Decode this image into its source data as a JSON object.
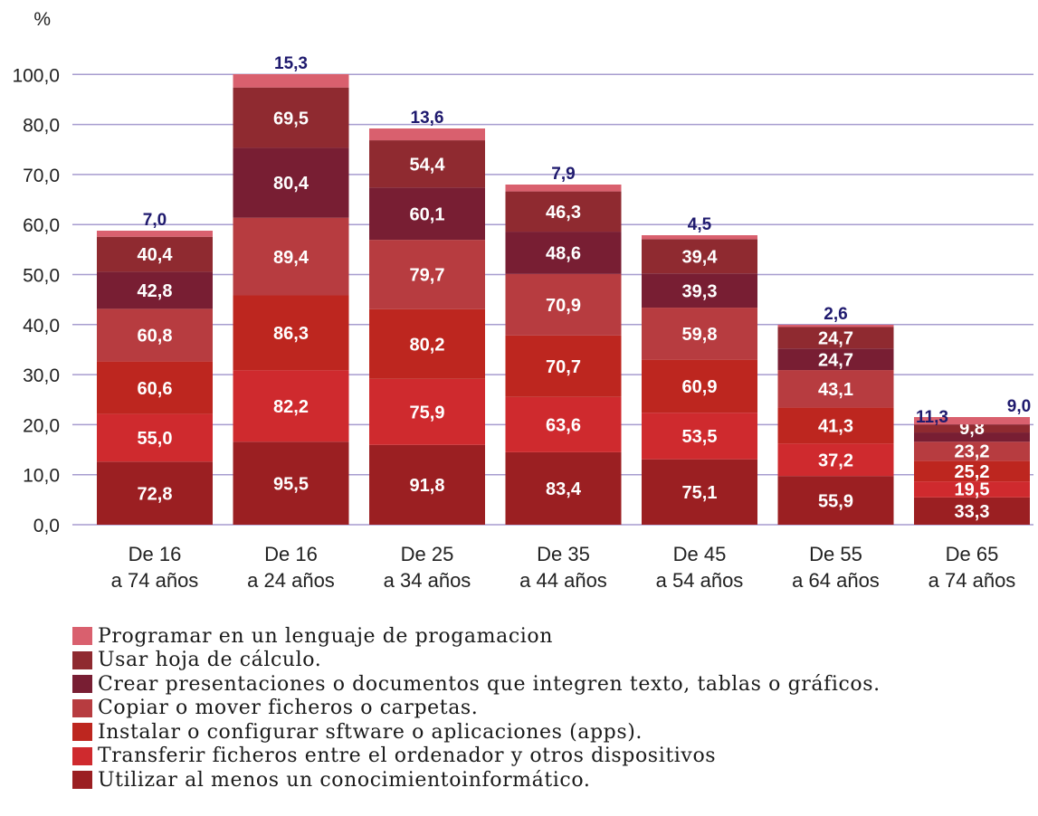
{
  "chart_data": {
    "type": "bar",
    "stacked": true,
    "title": "",
    "ylabel": "%",
    "xlabel": "",
    "yticks": [
      "0,0",
      "10,0",
      "20,0",
      "30,0",
      "40,0",
      "50,0",
      "60,0",
      "70,0",
      "80,0",
      "100,0"
    ],
    "grid": true,
    "legend_position": "bottom",
    "categories": [
      [
        "De 16",
        "a 74 años"
      ],
      [
        "De 16",
        "a 24 años"
      ],
      [
        "De 25",
        "a 34 años"
      ],
      [
        "De 35",
        "a 44 años"
      ],
      [
        "De 45",
        "a 54 años"
      ],
      [
        "De 55",
        "a 64 años"
      ],
      [
        "De 65",
        "a 74 años"
      ]
    ],
    "series": [
      {
        "name": "Utilizar al menos un conocimientoinformático.",
        "color": "#9b1f22",
        "values": [
          72.8,
          95.5,
          91.8,
          83.4,
          75.1,
          55.9,
          33.3
        ],
        "labels": [
          "72,8",
          "95,5",
          "91,8",
          "83,4",
          "75,1",
          "55,9",
          "33,3"
        ]
      },
      {
        "name": "Transferir ficheros entre el ordenador y otros dispositivos",
        "color": "#cf2a2e",
        "values": [
          55.0,
          82.2,
          75.9,
          63.6,
          53.5,
          37.2,
          19.5
        ],
        "labels": [
          "55,0",
          "82,2",
          "75,9",
          "63,6",
          "53,5",
          "37,2",
          "19,5"
        ]
      },
      {
        "name": "Instalar o configurar sftware o aplicaciones (apps).",
        "color": "#bd261f",
        "values": [
          60.6,
          86.3,
          80.2,
          70.7,
          60.9,
          41.3,
          25.2
        ],
        "labels": [
          "60,6",
          "86,3",
          "80,2",
          "70,7",
          "60,9",
          "41,3",
          "25,2"
        ]
      },
      {
        "name": "Copiar o mover ficheros o carpetas.",
        "color": "#b73c40",
        "values": [
          60.8,
          89.4,
          79.7,
          70.9,
          59.8,
          43.1,
          23.2
        ],
        "labels": [
          "60,8",
          "89,4",
          "79,7",
          "70,9",
          "59,8",
          "43,1",
          "23,2"
        ]
      },
      {
        "name": "Crear presentaciones o documentos que integren texto, tablas o gráficos.",
        "color": "#781e33",
        "values": [
          42.8,
          80.4,
          60.1,
          48.6,
          39.3,
          24.7,
          11.3
        ],
        "labels": [
          "42,8",
          "80,4",
          "60,1",
          "48,6",
          "39,3",
          "24,7",
          "11,3"
        ]
      },
      {
        "name": "Usar hoja de cálculo.",
        "color": "#8f2a30",
        "values": [
          40.4,
          69.5,
          54.4,
          46.3,
          39.4,
          24.7,
          9.8
        ],
        "labels": [
          "40,4",
          "69,5",
          "54,4",
          "46,3",
          "39,4",
          "24,7",
          "9,8"
        ]
      },
      {
        "name": "Programar en un lenguaje de progamacion",
        "color": "#d9606e",
        "values": [
          7.0,
          15.3,
          13.6,
          7.9,
          4.5,
          2.6,
          9.0
        ],
        "labels": [
          "7,0",
          "15,3",
          "13,6",
          "7,9",
          "4,5",
          "2,6",
          "9,0"
        ]
      }
    ]
  },
  "legend": [
    {
      "label": "Programar en un lenguaje de progamacion",
      "color": "#d9606e"
    },
    {
      "label": "Usar hoja de cálculo.",
      "color": "#8f2a30"
    },
    {
      "label": "Crear presentaciones o documentos que integren texto, tablas o gráficos.",
      "color": "#781e33"
    },
    {
      "label": "Copiar o mover ficheros o carpetas.",
      "color": "#b73c40"
    },
    {
      "label": "Instalar o configurar sftware o aplicaciones (apps).",
      "color": "#bd261f"
    },
    {
      "label": "Transferir ficheros entre el ordenador y otros dispositivos",
      "color": "#cf2a2e"
    },
    {
      "label": "Utilizar al menos un conocimientoinformático.",
      "color": "#9b1f22"
    }
  ],
  "colors": {
    "grid": "#a79ccf",
    "top_label": "#1f1a6e",
    "axis_text": "#222222"
  }
}
